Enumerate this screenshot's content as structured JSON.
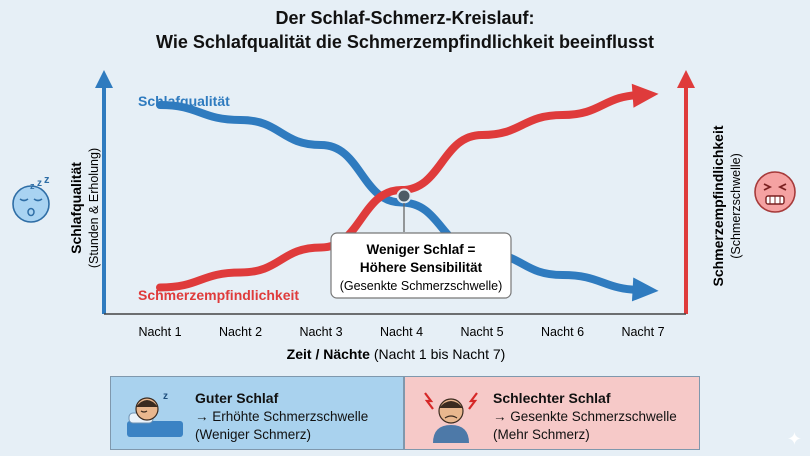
{
  "title_line1": "Der Schlaf-Schmerz-Kreislauf:",
  "title_line2": "Wie Schlafqualität die Schmerzempfindlichkeit beeinflusst",
  "chart_data": {
    "type": "line",
    "x": [
      "Nacht 1",
      "Nacht 2",
      "Nacht 3",
      "Nacht 4",
      "Nacht 5",
      "Nacht 6",
      "Nacht 7"
    ],
    "xlabel_bold": "Zeit / Nächte",
    "xlabel_rest": "(Nacht 1 bis Nacht 7)",
    "ylabel_left": "Schlafqualität",
    "ylabel_left_sub": "(Stunden & Erholung)",
    "ylabel_right": "Schmerzempfindlichkeit",
    "ylabel_right_sub": "(Schmerzschwelle)",
    "ylim": [
      0,
      100
    ],
    "series": [
      {
        "name": "Schlafqualität",
        "color": "#2f7bbf",
        "values": [
          86,
          80,
          70,
          47,
          27,
          18,
          12
        ]
      },
      {
        "name": "Schmerzempfindlichkeit",
        "color": "#df3b3b",
        "values": [
          13,
          19,
          29,
          52,
          74,
          82,
          90
        ]
      }
    ],
    "annotation": {
      "line1": "Weniger Schlaf =",
      "line2": "Höhere Sensibilität",
      "line3": "(Gesenkte Schmerzschwelle)"
    }
  },
  "icons": {
    "left": "sleeping-face-icon",
    "right": "distressed-face-icon",
    "good": "sleeping-person-icon",
    "bad": "headache-person-icon"
  },
  "legend": {
    "good": {
      "title": "Guter Schlaf",
      "line1": "→ Erhöhte Schmerzschwelle",
      "line2": "(Weniger Schmerz)"
    },
    "bad": {
      "title": "Schlechter Schlaf",
      "line1": "→ Gesenkte Schmerzschwelle",
      "line2": "(Mehr Schmerz)"
    }
  }
}
